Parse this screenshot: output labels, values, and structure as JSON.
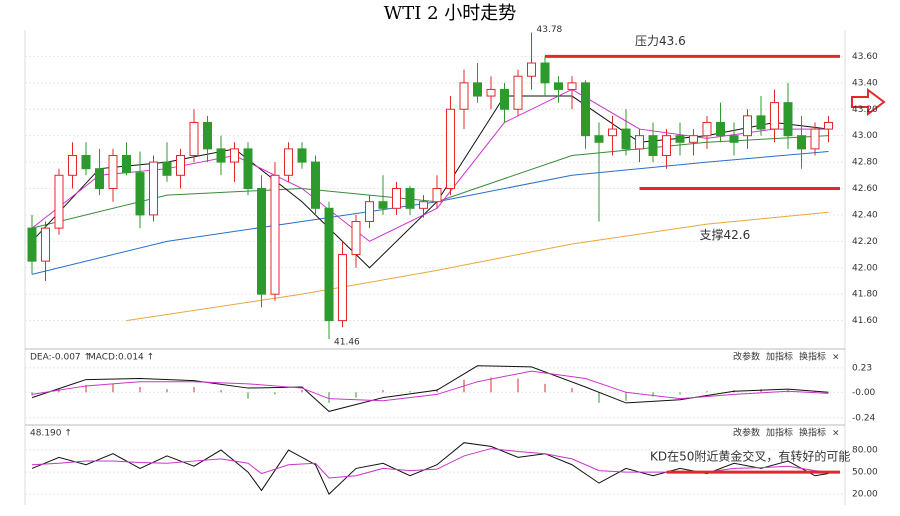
{
  "chart_data": [
    {
      "type": "candlestick",
      "title": "WTI 2 小时走势",
      "open": [
        42.3,
        42.05,
        42.3,
        42.7,
        42.85,
        42.75,
        42.6,
        42.85,
        42.72,
        42.4,
        42.8,
        42.7,
        42.85,
        43.1,
        42.9,
        42.8,
        42.9,
        42.6,
        41.8,
        42.7,
        42.9,
        42.8,
        42.45,
        41.6,
        42.1,
        42.35,
        42.5,
        42.45,
        42.6,
        42.45,
        42.5,
        42.6,
        43.2,
        43.4,
        43.3,
        43.35,
        43.2,
        43.45,
        43.55,
        43.4,
        43.35,
        43.4,
        43.0,
        43.0,
        43.05,
        42.9,
        43.0,
        42.85,
        43.0,
        42.95,
        43.0,
        43.1,
        43.0,
        43.0,
        43.15,
        43.05,
        43.25,
        43.0,
        42.9,
        43.05
      ],
      "high": [
        42.4,
        42.35,
        42.75,
        42.95,
        42.95,
        42.9,
        42.9,
        42.95,
        42.88,
        42.85,
        42.95,
        42.9,
        43.2,
        43.15,
        43.0,
        42.95,
        42.95,
        42.7,
        42.8,
        42.95,
        42.95,
        42.85,
        42.5,
        42.2,
        42.4,
        42.55,
        42.7,
        42.65,
        42.62,
        42.55,
        42.7,
        43.3,
        43.5,
        43.55,
        43.45,
        43.4,
        43.5,
        43.78,
        43.6,
        43.45,
        43.45,
        43.42,
        43.1,
        43.15,
        43.2,
        43.05,
        43.1,
        43.05,
        43.1,
        43.05,
        43.15,
        43.25,
        43.1,
        43.2,
        43.3,
        43.35,
        43.4,
        43.15,
        43.1,
        43.15
      ],
      "low": [
        41.95,
        41.9,
        42.25,
        42.6,
        42.7,
        42.55,
        42.5,
        42.7,
        42.3,
        42.35,
        42.65,
        42.6,
        42.8,
        42.8,
        42.7,
        42.65,
        42.55,
        41.7,
        41.75,
        42.65,
        42.75,
        42.4,
        41.46,
        41.55,
        42.0,
        42.3,
        42.4,
        42.4,
        42.4,
        42.38,
        42.45,
        42.55,
        43.05,
        43.25,
        43.2,
        43.1,
        43.15,
        43.35,
        43.3,
        43.25,
        43.2,
        42.9,
        42.35,
        42.85,
        42.85,
        42.8,
        42.8,
        42.75,
        42.85,
        42.85,
        42.9,
        42.95,
        42.85,
        42.9,
        43.0,
        42.95,
        42.9,
        42.75,
        42.85,
        42.95
      ],
      "close": [
        42.05,
        42.3,
        42.7,
        42.85,
        42.75,
        42.6,
        42.85,
        42.72,
        42.4,
        42.8,
        42.7,
        42.85,
        43.1,
        42.9,
        42.8,
        42.9,
        42.6,
        41.8,
        42.7,
        42.9,
        42.8,
        42.45,
        41.6,
        42.1,
        42.35,
        42.5,
        42.45,
        42.6,
        42.45,
        42.5,
        42.6,
        43.2,
        43.4,
        43.3,
        43.35,
        43.2,
        43.45,
        43.55,
        43.4,
        43.35,
        43.4,
        43.0,
        42.95,
        43.05,
        42.9,
        43.0,
        42.85,
        43.0,
        42.95,
        43.0,
        43.1,
        43.0,
        42.95,
        43.15,
        43.05,
        43.25,
        43.0,
        42.9,
        43.05,
        43.1
      ],
      "up_color": "#e0282e",
      "down_color": "#2e9a2e",
      "ylim": [
        41.4,
        43.8
      ],
      "yticks": [
        {
          "value": 41.6,
          "label": "41.60"
        },
        {
          "value": 41.8,
          "label": "41.80"
        },
        {
          "value": 42,
          "label": "42.00"
        },
        {
          "value": 42.2,
          "label": "42.20"
        },
        {
          "value": 42.4,
          "label": "42.40"
        },
        {
          "value": 42.6,
          "label": "42.60"
        },
        {
          "value": 42.8,
          "label": "42.80"
        },
        {
          "value": 43,
          "label": "43.00"
        },
        {
          "value": 43.2,
          "label": "43.20"
        },
        {
          "value": 43.4,
          "label": "43.40"
        },
        {
          "value": 43.6,
          "label": "43.60"
        }
      ],
      "series": [
        {
          "color": "#2a6fc9",
          "x": [
            0,
            10,
            20,
            30,
            40,
            50,
            59
          ],
          "values": [
            41.95,
            42.2,
            42.35,
            42.5,
            42.7,
            42.8,
            42.88
          ]
        },
        {
          "color": "#3a8a3a",
          "x": [
            0,
            10,
            20,
            30,
            40,
            50,
            59
          ],
          "values": [
            42.3,
            42.55,
            42.6,
            42.5,
            42.85,
            42.95,
            43.0
          ]
        },
        {
          "color": "#e8a83a",
          "x": [
            7,
            20,
            30,
            40,
            50,
            59
          ],
          "values": [
            41.6,
            41.8,
            41.98,
            42.18,
            42.33,
            42.42
          ]
        },
        {
          "color": "#111111",
          "x": [
            0,
            5,
            10,
            15,
            20,
            25,
            30,
            35,
            40,
            45,
            50,
            55,
            59
          ],
          "values": [
            42.2,
            42.75,
            42.8,
            42.9,
            42.5,
            42.0,
            42.5,
            43.3,
            43.3,
            42.95,
            43.0,
            43.1,
            43.05
          ]
        },
        {
          "color": "#cc33cc",
          "x": [
            0,
            5,
            10,
            15,
            20,
            25,
            30,
            35,
            40,
            45,
            50,
            55,
            59
          ],
          "values": [
            42.3,
            42.7,
            42.75,
            42.85,
            42.6,
            42.2,
            42.45,
            43.1,
            43.35,
            43.05,
            42.98,
            43.05,
            43.05
          ]
        }
      ],
      "annotations": [
        {
          "text": "43.78",
          "x": 37,
          "value": 43.78
        },
        {
          "text": "41.46",
          "x": 22,
          "value": 41.46
        },
        {
          "text": "压力43.6",
          "x": 38,
          "value": 43.6,
          "to": 60
        },
        {
          "text": "支撑42.6",
          "x": 45,
          "value": 42.6,
          "to": 60
        }
      ],
      "level_color": "#e0282e"
    },
    {
      "type": "macd",
      "labels": [
        "DEA:-0.007 ↑",
        "MACD:0.014 ↑"
      ],
      "buttons": [
        "改参数",
        "加指标",
        "换指标",
        "×"
      ],
      "ylim": [
        -0.28,
        0.38
      ],
      "yticks": [
        0.23,
        {
          "value": 0,
          "label": "-0.00"
        },
        -0.24
      ],
      "bar_x": [
        0,
        2,
        4,
        6,
        8,
        10,
        12,
        14,
        16,
        18,
        20,
        22,
        24,
        26,
        28,
        30,
        32,
        34,
        36,
        38,
        40,
        42,
        44,
        46,
        48,
        50,
        52,
        54,
        56,
        58
      ],
      "bars": [
        -0.03,
        0.04,
        0.07,
        0.08,
        0.05,
        0.03,
        0.05,
        0.02,
        -0.06,
        -0.02,
        0.02,
        -0.1,
        -0.05,
        0.02,
        0.01,
        0.03,
        0.12,
        0.14,
        0.13,
        0.08,
        0.04,
        -0.1,
        -0.08,
        -0.04,
        -0.02,
        0.01,
        0.02,
        0.03,
        0.02,
        0.01
      ],
      "series": [
        {
          "color": "#111111",
          "x": [
            0,
            4,
            8,
            12,
            16,
            20,
            22,
            26,
            30,
            33,
            37,
            41,
            44,
            48,
            52,
            56,
            59
          ],
          "values": [
            -0.05,
            0.12,
            0.13,
            0.11,
            0.04,
            0.05,
            -0.18,
            -0.05,
            0.02,
            0.25,
            0.24,
            0.05,
            -0.1,
            -0.07,
            0.01,
            0.03,
            0.0
          ]
        },
        {
          "color": "#cc33cc",
          "x": [
            0,
            4,
            8,
            12,
            16,
            20,
            22,
            26,
            30,
            33,
            37,
            41,
            44,
            48,
            52,
            56,
            59
          ],
          "values": [
            -0.02,
            0.06,
            0.1,
            0.1,
            0.08,
            0.04,
            -0.06,
            -0.08,
            -0.02,
            0.1,
            0.2,
            0.13,
            0.0,
            -0.06,
            -0.02,
            0.01,
            -0.01
          ]
        }
      ]
    },
    {
      "type": "kd",
      "labels": [
        "48.190 ↑"
      ],
      "buttons": [
        "改参数",
        "加指标",
        "换指标",
        "×"
      ],
      "ylim": [
        12,
        110
      ],
      "yticks": [
        {
          "value": 80,
          "label": "80.00"
        },
        {
          "value": 50,
          "label": "50.00"
        },
        {
          "value": 20,
          "label": "20.00"
        }
      ],
      "series": [
        {
          "color": "#111111",
          "x": [
            0,
            2,
            4,
            6,
            8,
            10,
            12,
            14,
            16,
            17,
            19,
            21,
            22,
            24,
            26,
            28,
            30,
            32,
            34,
            36,
            38,
            40,
            42,
            44,
            46,
            48,
            50,
            52,
            54,
            56,
            58,
            59
          ],
          "values": [
            55,
            70,
            60,
            75,
            55,
            72,
            58,
            80,
            50,
            25,
            80,
            60,
            20,
            55,
            62,
            45,
            60,
            90,
            85,
            70,
            75,
            60,
            35,
            55,
            45,
            55,
            48,
            62,
            55,
            65,
            45,
            48
          ]
        },
        {
          "color": "#cc33cc",
          "x": [
            0,
            2,
            4,
            6,
            8,
            10,
            12,
            14,
            16,
            17,
            19,
            21,
            22,
            24,
            26,
            28,
            30,
            32,
            34,
            36,
            38,
            40,
            42,
            44,
            46,
            48,
            50,
            52,
            54,
            56,
            58,
            59
          ],
          "values": [
            60,
            62,
            65,
            65,
            63,
            62,
            65,
            68,
            62,
            48,
            60,
            62,
            42,
            45,
            55,
            52,
            54,
            72,
            82,
            78,
            75,
            68,
            52,
            50,
            50,
            50,
            50,
            55,
            56,
            58,
            52,
            50
          ]
        }
      ],
      "annotations": [
        {
          "text": "KD在50附近黄金交叉，有转好的可能",
          "x": 47,
          "value": 50,
          "to": 60
        }
      ],
      "level_color": "#e0282e"
    }
  ]
}
